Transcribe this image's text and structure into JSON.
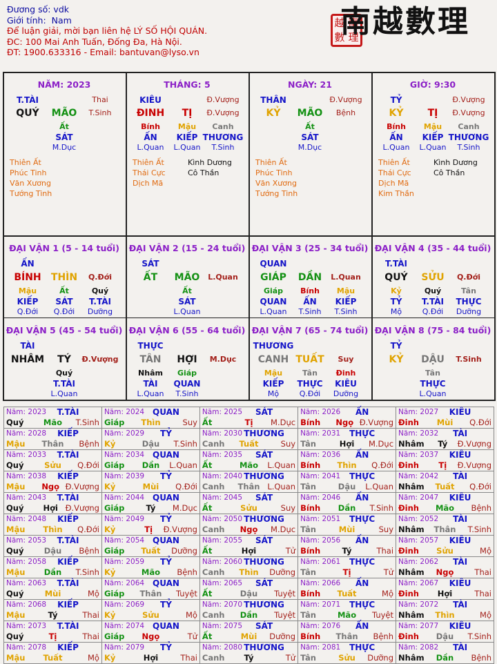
{
  "header": {
    "line1": "Đương số: vdk",
    "line2_label": "Giới tính:",
    "line2_value": "Nam",
    "line3": "Để luận giải, mời bạn liên hệ LÝ SỐ HỘI QUÁN.",
    "line4": "ĐC: 100 Mai Anh Tuấn, Đống Đa, Hà Nội.",
    "line5": "ĐT: 1900.633316 - Email: bantuvan@lyso.vn"
  },
  "logo": {
    "text": "南越數理",
    "seal": [
      "越",
      "南",
      "數",
      "理"
    ]
  },
  "colors": {
    "purple": "#8b1fc7",
    "blue": "#1414c8",
    "red": "#c80000",
    "green": "#149114",
    "gold": "#e0a300",
    "dark_red": "#a3201a",
    "gray": "#666666"
  },
  "pillars": [
    {
      "title": "NĂM: 2023",
      "ten_god": "T.TÀI",
      "stage": "Thai",
      "stem": "QUÝ",
      "branch": "MÃO",
      "branch_stage": "T.Sinh",
      "hidden": [
        {
          "stem": "Ất",
          "god": "SÁT",
          "stage": "M.Dục"
        }
      ],
      "stars_left": [
        "Thiên Ất",
        "Phúc Tinh",
        "Văn Xương",
        "Tướng Tinh"
      ],
      "stars_right": []
    },
    {
      "title": "THÁNG: 5",
      "ten_god": "KIÊU",
      "stage": "Đ.Vượng",
      "stem": "ĐINH",
      "branch": "TỊ",
      "branch_stage": "Đ.Vượng",
      "hidden": [
        {
          "stem": "Bính",
          "god": "ẤN",
          "stage": "L.Quan"
        },
        {
          "stem": "Mậu",
          "god": "KIẾP",
          "stage": "L.Quan"
        },
        {
          "stem": "Canh",
          "god": "THƯƠNG",
          "stage": "T.Sinh"
        }
      ],
      "stars_left": [
        "Thiên Ất",
        "Thái Cực",
        "Dịch Mã"
      ],
      "stars_right": [
        "Kình Dương",
        "Cô Thần"
      ]
    },
    {
      "title": "NGÀY: 21",
      "ten_god": "THÂN",
      "stage": "Đ.Vượng",
      "stem": "KỶ",
      "branch": "MÃO",
      "branch_stage": "Bệnh",
      "hidden": [
        {
          "stem": "Ất",
          "god": "SÁT",
          "stage": "M.Dục"
        }
      ],
      "stars_left": [
        "Thiên Ất",
        "Phúc Tinh",
        "Văn Xương",
        "Tướng Tinh"
      ],
      "stars_right": []
    },
    {
      "title": "GIỜ: 9:30",
      "ten_god": "TỶ",
      "stage": "Đ.Vượng",
      "stem": "KỶ",
      "branch": "TỊ",
      "branch_stage": "Đ.Vượng",
      "hidden": [
        {
          "stem": "Bính",
          "god": "ẤN",
          "stage": "L.Quan"
        },
        {
          "stem": "Mậu",
          "god": "KIẾP",
          "stage": "L.Quan"
        },
        {
          "stem": "Canh",
          "god": "THƯƠNG",
          "stage": "T.Sinh"
        }
      ],
      "stars_left": [
        "Thiên Ất",
        "Thái Cực",
        "Dịch Mã",
        "Kim Thần"
      ],
      "stars_right": [
        "Kình Dương",
        "Cô Thần"
      ]
    }
  ],
  "dai_van": [
    {
      "title": "ĐẠI VẬN 1 (5 - 14 tuổi)",
      "ten_god": "ẤN",
      "stem": "BÍNH",
      "branch": "THÌN",
      "stage": "Q.Đới",
      "hidden": [
        {
          "stem": "Mậu",
          "god": "KIẾP",
          "stage": "Q.Đới"
        },
        {
          "stem": "Ất",
          "god": "SÁT",
          "stage": "Q.Đới"
        },
        {
          "stem": "Quý",
          "god": "T.TÀI",
          "stage": "Dưỡng"
        }
      ]
    },
    {
      "title": "ĐẠI VẬN 2 (15 - 24 tuổi)",
      "ten_god": "SÁT",
      "stem": "ẤT",
      "branch": "MÃO",
      "stage": "L.Quan",
      "hidden": [
        {
          "stem": "Ất",
          "god": "SÁT",
          "stage": "L.Quan"
        }
      ]
    },
    {
      "title": "ĐẠI VẬN 3 (25 - 34 tuổi)",
      "ten_god": "QUAN",
      "stem": "GIÁP",
      "branch": "DẦN",
      "stage": "L.Quan",
      "hidden": [
        {
          "stem": "Giáp",
          "god": "QUAN",
          "stage": "L.Quan"
        },
        {
          "stem": "Bính",
          "god": "ẤN",
          "stage": "T.Sinh"
        },
        {
          "stem": "Mậu",
          "god": "KIẾP",
          "stage": "T.Sinh"
        }
      ]
    },
    {
      "title": "ĐẠI VẬN 4 (35 - 44 tuổi)",
      "ten_god": "T.TÀI",
      "stem": "QUÝ",
      "branch": "SỬU",
      "stage": "Q.Đới",
      "hidden": [
        {
          "stem": "Kỷ",
          "god": "TỶ",
          "stage": "Mộ"
        },
        {
          "stem": "Quý",
          "god": "T.TÀI",
          "stage": "Q.Đới"
        },
        {
          "stem": "Tân",
          "god": "THỰC",
          "stage": "Dưỡng"
        }
      ]
    },
    {
      "title": "ĐẠI VẬN 5 (45 - 54 tuổi)",
      "ten_god": "TÀI",
      "stem": "NHÂM",
      "branch": "TÝ",
      "stage": "Đ.Vượng",
      "hidden": [
        {
          "stem": "Quý",
          "god": "T.TÀI",
          "stage": "L.Quan"
        }
      ]
    },
    {
      "title": "ĐẠI VẬN 6 (55 - 64 tuổi)",
      "ten_god": "THỰC",
      "stem": "TÂN",
      "branch": "HỢI",
      "stage": "M.Dục",
      "hidden": [
        {
          "stem": "Nhâm",
          "god": "TÀI",
          "stage": "L.Quan"
        },
        {
          "stem": "Giáp",
          "god": "QUAN",
          "stage": "T.Sinh"
        }
      ]
    },
    {
      "title": "ĐẠI VẬN 7 (65 - 74 tuổi)",
      "ten_god": "THƯƠNG",
      "stem": "CANH",
      "branch": "TUẤT",
      "stage": "Suy",
      "hidden": [
        {
          "stem": "Mậu",
          "god": "KIẾP",
          "stage": "Mộ"
        },
        {
          "stem": "Tân",
          "god": "THỰC",
          "stage": "Q.Đới"
        },
        {
          "stem": "Đinh",
          "god": "KIÊU",
          "stage": "Dưỡng"
        }
      ]
    },
    {
      "title": "ĐẠI VẬN 8 (75 - 84 tuổi)",
      "ten_god": "TỶ",
      "stem": "KỶ",
      "branch": "DẬU",
      "stage": "T.Sinh",
      "hidden": [
        {
          "stem": "Tân",
          "god": "THỰC",
          "stage": "L.Quan"
        }
      ]
    }
  ],
  "luu_nien": [
    [
      "Năm: 2023",
      "T.TÀI",
      "Quý",
      "Mão",
      "T.Sinh"
    ],
    [
      "Năm: 2024",
      "QUAN",
      "Giáp",
      "Thìn",
      "Suy"
    ],
    [
      "Năm: 2025",
      "SÁT",
      "Ất",
      "Tị",
      "M.Dục"
    ],
    [
      "Năm: 2026",
      "ẤN",
      "Bính",
      "Ngọ",
      "Đ.Vượng"
    ],
    [
      "Năm: 2027",
      "KIÊU",
      "Đinh",
      "Mùi",
      "Q.Đới"
    ],
    [
      "Năm: 2028",
      "KIẾP",
      "Mậu",
      "Thân",
      "Bệnh"
    ],
    [
      "Năm: 2029",
      "TỶ",
      "Kỷ",
      "Dậu",
      "T.Sinh"
    ],
    [
      "Năm: 2030",
      "THƯƠNG",
      "Canh",
      "Tuất",
      "Suy"
    ],
    [
      "Năm: 2031",
      "THỰC",
      "Tân",
      "Hợi",
      "M.Dục"
    ],
    [
      "Năm: 2032",
      "TÀI",
      "Nhâm",
      "Tý",
      "Đ.Vượng"
    ],
    [
      "Năm: 2033",
      "T.TÀI",
      "Quý",
      "Sửu",
      "Q.Đới"
    ],
    [
      "Năm: 2034",
      "QUAN",
      "Giáp",
      "Dần",
      "L.Quan"
    ],
    [
      "Năm: 2035",
      "SÁT",
      "Ất",
      "Mão",
      "L.Quan"
    ],
    [
      "Năm: 2036",
      "ẤN",
      "Bính",
      "Thìn",
      "Q.Đới"
    ],
    [
      "Năm: 2037",
      "KIÊU",
      "Đinh",
      "Tị",
      "Đ.Vượng"
    ],
    [
      "Năm: 2038",
      "KIẾP",
      "Mậu",
      "Ngọ",
      "Đ.Vượng"
    ],
    [
      "Năm: 2039",
      "TỶ",
      "Kỷ",
      "Mùi",
      "Q.Đới"
    ],
    [
      "Năm: 2040",
      "THƯƠNG",
      "Canh",
      "Thân",
      "L.Quan"
    ],
    [
      "Năm: 2041",
      "THỰC",
      "Tân",
      "Dậu",
      "L.Quan"
    ],
    [
      "Năm: 2042",
      "TÀI",
      "Nhâm",
      "Tuất",
      "Q.Đới"
    ],
    [
      "Năm: 2043",
      "T.TÀI",
      "Quý",
      "Hợi",
      "Đ.Vượng"
    ],
    [
      "Năm: 2044",
      "QUAN",
      "Giáp",
      "Tý",
      "M.Dục"
    ],
    [
      "Năm: 2045",
      "SÁT",
      "Ất",
      "Sửu",
      "Suy"
    ],
    [
      "Năm: 2046",
      "ẤN",
      "Bính",
      "Dần",
      "T.Sinh"
    ],
    [
      "Năm: 2047",
      "KIÊU",
      "Đinh",
      "Mão",
      "Bệnh"
    ],
    [
      "Năm: 2048",
      "KIẾP",
      "Mậu",
      "Thìn",
      "Q.Đới"
    ],
    [
      "Năm: 2049",
      "TỶ",
      "Kỷ",
      "Tị",
      "Đ.Vượng"
    ],
    [
      "Năm: 2050",
      "THƯƠNG",
      "Canh",
      "Ngọ",
      "M.Dục"
    ],
    [
      "Năm: 2051",
      "THỰC",
      "Tân",
      "Mùi",
      "Suy"
    ],
    [
      "Năm: 2052",
      "TÀI",
      "Nhâm",
      "Thân",
      "T.Sinh"
    ],
    [
      "Năm: 2053",
      "T.TÀI",
      "Quý",
      "Dậu",
      "Bệnh"
    ],
    [
      "Năm: 2054",
      "QUAN",
      "Giáp",
      "Tuất",
      "Dưỡng"
    ],
    [
      "Năm: 2055",
      "SÁT",
      "Ất",
      "Hợi",
      "Tử"
    ],
    [
      "Năm: 2056",
      "ẤN",
      "Bính",
      "Tý",
      "Thai"
    ],
    [
      "Năm: 2057",
      "KIÊU",
      "Đinh",
      "Sửu",
      "Mộ"
    ],
    [
      "Năm: 2058",
      "KIẾP",
      "Mậu",
      "Dần",
      "T.Sinh"
    ],
    [
      "Năm: 2059",
      "TỶ",
      "Kỷ",
      "Mão",
      "Bệnh"
    ],
    [
      "Năm: 2060",
      "THƯƠNG",
      "Canh",
      "Thìn",
      "Dưỡng"
    ],
    [
      "Năm: 2061",
      "THỰC",
      "Tân",
      "Tị",
      "Tử"
    ],
    [
      "Năm: 2062",
      "TÀI",
      "Nhâm",
      "Ngọ",
      "Thai"
    ],
    [
      "Năm: 2063",
      "T.TÀI",
      "Quý",
      "Mùi",
      "Mộ"
    ],
    [
      "Năm: 2064",
      "QUAN",
      "Giáp",
      "Thân",
      "Tuyệt"
    ],
    [
      "Năm: 2065",
      "SÁT",
      "Ất",
      "Dậu",
      "Tuyệt"
    ],
    [
      "Năm: 2066",
      "ẤN",
      "Bính",
      "Tuất",
      "Mộ"
    ],
    [
      "Năm: 2067",
      "KIÊU",
      "Đinh",
      "Hợi",
      "Thai"
    ],
    [
      "Năm: 2068",
      "KIẾP",
      "Mậu",
      "Tý",
      "Thai"
    ],
    [
      "Năm: 2069",
      "TỶ",
      "Kỷ",
      "Sửu",
      "Mộ"
    ],
    [
      "Năm: 2070",
      "THƯƠNG",
      "Canh",
      "Dần",
      "Tuyệt"
    ],
    [
      "Năm: 2071",
      "THỰC",
      "Tân",
      "Mão",
      "Tuyệt"
    ],
    [
      "Năm: 2072",
      "TÀI",
      "Nhâm",
      "Thìn",
      "Mộ"
    ],
    [
      "Năm: 2073",
      "T.TÀI",
      "Quý",
      "Tị",
      "Thai"
    ],
    [
      "Năm: 2074",
      "QUAN",
      "Giáp",
      "Ngọ",
      "Tử"
    ],
    [
      "Năm: 2075",
      "SÁT",
      "Ất",
      "Mùi",
      "Dưỡng"
    ],
    [
      "Năm: 2076",
      "ẤN",
      "Bính",
      "Thân",
      "Bệnh"
    ],
    [
      "Năm: 2077",
      "KIÊU",
      "Đinh",
      "Dậu",
      "T.Sinh"
    ],
    [
      "Năm: 2078",
      "KIẾP",
      "Mậu",
      "Tuất",
      "Mộ"
    ],
    [
      "Năm: 2079",
      "TỶ",
      "Kỷ",
      "Hợi",
      "Thai"
    ],
    [
      "Năm: 2080",
      "THƯƠNG",
      "Canh",
      "Tý",
      "Tử"
    ],
    [
      "Năm: 2081",
      "THỰC",
      "Tân",
      "Sửu",
      "Dưỡng"
    ],
    [
      "Năm: 2082",
      "TÀI",
      "Nhâm",
      "Dần",
      "Bệnh"
    ]
  ]
}
